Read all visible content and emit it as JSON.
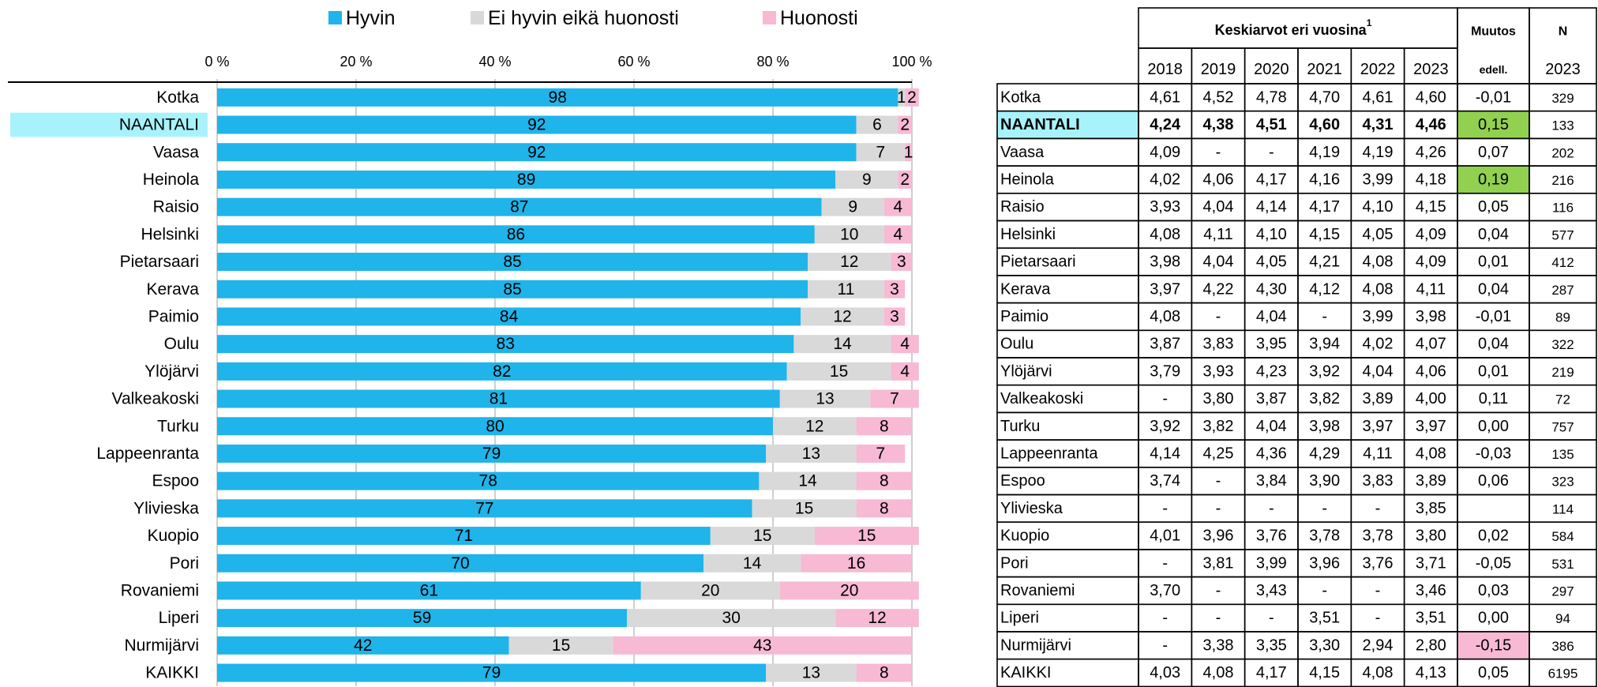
{
  "chart_data": {
    "type": "bar",
    "orientation": "horizontal",
    "stacked": true,
    "categories": [
      "Kotka",
      "NAANTALI",
      "Vaasa",
      "Heinola",
      "Raisio",
      "Helsinki",
      "Pietarsaari",
      "Kerava",
      "Paimio",
      "Oulu",
      "Ylöjärvi",
      "Valkeakoski",
      "Turku",
      "Lappeenranta",
      "Espoo",
      "Ylivieska",
      "Kuopio",
      "Pori",
      "Rovaniemi",
      "Liperi",
      "Nurmijärvi",
      "KAIKKI"
    ],
    "series": [
      {
        "name": "Hyvin",
        "color": "#1fb4ea",
        "values": [
          98,
          92,
          92,
          89,
          87,
          86,
          85,
          85,
          84,
          83,
          82,
          81,
          80,
          79,
          78,
          77,
          71,
          70,
          61,
          59,
          42,
          79
        ]
      },
      {
        "name": "Ei hyvin eikä huonosti",
        "color": "#d9d9d9",
        "values": [
          1,
          6,
          7,
          9,
          9,
          10,
          12,
          11,
          12,
          14,
          15,
          13,
          12,
          13,
          14,
          15,
          15,
          14,
          20,
          30,
          15,
          13
        ]
      },
      {
        "name": "Huonosti",
        "color": "#f7b9d4",
        "values": [
          2,
          2,
          1,
          2,
          4,
          4,
          3,
          3,
          3,
          4,
          4,
          7,
          8,
          7,
          8,
          8,
          15,
          16,
          20,
          12,
          43,
          8
        ]
      }
    ],
    "xlim": [
      0,
      100
    ],
    "xticks": [
      {
        "value": 0,
        "label": "0 %"
      },
      {
        "value": 20,
        "label": "20 %"
      },
      {
        "value": 40,
        "label": "40 %"
      },
      {
        "value": 60,
        "label": "60 %"
      },
      {
        "value": 80,
        "label": "80 %"
      },
      {
        "value": 100,
        "label": "100 %"
      }
    ],
    "grid": true,
    "highlight_category": 1,
    "highlight_color": "#a8f3fb"
  },
  "table": {
    "title": "Keskiarvot eri vuosina",
    "title_sup": "1",
    "columns": [
      "2018",
      "2019",
      "2020",
      "2021",
      "2022",
      "2023"
    ],
    "change_header": [
      "Muutos",
      "edell."
    ],
    "n_header": [
      "N",
      "2023"
    ],
    "bold_row": 1,
    "highlight_color": "#a8f3fb",
    "rows": [
      {
        "name": "Kotka",
        "values": [
          "4,61",
          "4,52",
          "4,78",
          "4,70",
          "4,61",
          "4,60"
        ],
        "change": "-0,01",
        "n": "329"
      },
      {
        "name": "NAANTALI",
        "values": [
          "4,24",
          "4,38",
          "4,51",
          "4,60",
          "4,31",
          "4,46"
        ],
        "change": "0,15",
        "n": "133",
        "change_color": "#92d050"
      },
      {
        "name": "Vaasa",
        "values": [
          "4,09",
          "-",
          "-",
          "4,19",
          "4,19",
          "4,26"
        ],
        "change": "0,07",
        "n": "202"
      },
      {
        "name": "Heinola",
        "values": [
          "4,02",
          "4,06",
          "4,17",
          "4,16",
          "3,99",
          "4,18"
        ],
        "change": "0,19",
        "n": "216",
        "change_color": "#92d050"
      },
      {
        "name": "Raisio",
        "values": [
          "3,93",
          "4,04",
          "4,14",
          "4,17",
          "4,10",
          "4,15"
        ],
        "change": "0,05",
        "n": "116"
      },
      {
        "name": "Helsinki",
        "values": [
          "4,08",
          "4,11",
          "4,10",
          "4,15",
          "4,05",
          "4,09"
        ],
        "change": "0,04",
        "n": "577"
      },
      {
        "name": "Pietarsaari",
        "values": [
          "3,98",
          "4,04",
          "4,05",
          "4,21",
          "4,08",
          "4,09"
        ],
        "change": "0,01",
        "n": "412"
      },
      {
        "name": "Kerava",
        "values": [
          "3,97",
          "4,22",
          "4,30",
          "4,12",
          "4,08",
          "4,11"
        ],
        "change": "0,04",
        "n": "287"
      },
      {
        "name": "Paimio",
        "values": [
          "4,08",
          "-",
          "4,04",
          "-",
          "3,99",
          "3,98"
        ],
        "change": "-0,01",
        "n": "89"
      },
      {
        "name": "Oulu",
        "values": [
          "3,87",
          "3,83",
          "3,95",
          "3,94",
          "4,02",
          "4,07"
        ],
        "change": "0,04",
        "n": "322"
      },
      {
        "name": "Ylöjärvi",
        "values": [
          "3,79",
          "3,93",
          "4,23",
          "3,92",
          "4,04",
          "4,06"
        ],
        "change": "0,01",
        "n": "219"
      },
      {
        "name": "Valkeakoski",
        "values": [
          "-",
          "3,80",
          "3,87",
          "3,82",
          "3,89",
          "4,00"
        ],
        "change": "0,11",
        "n": "72"
      },
      {
        "name": "Turku",
        "values": [
          "3,92",
          "3,82",
          "4,04",
          "3,98",
          "3,97",
          "3,97"
        ],
        "change": "0,00",
        "n": "757"
      },
      {
        "name": "Lappeenranta",
        "values": [
          "4,14",
          "4,25",
          "4,36",
          "4,29",
          "4,11",
          "4,08"
        ],
        "change": "-0,03",
        "n": "135"
      },
      {
        "name": "Espoo",
        "values": [
          "3,74",
          "-",
          "3,84",
          "3,90",
          "3,83",
          "3,89"
        ],
        "change": "0,06",
        "n": "323"
      },
      {
        "name": "Ylivieska",
        "values": [
          "-",
          "-",
          "-",
          "-",
          "-",
          "3,85"
        ],
        "change": null,
        "n": "114"
      },
      {
        "name": "Kuopio",
        "values": [
          "4,01",
          "3,96",
          "3,76",
          "3,78",
          "3,78",
          "3,80"
        ],
        "change": "0,02",
        "n": "584"
      },
      {
        "name": "Pori",
        "values": [
          "-",
          "3,81",
          "3,99",
          "3,96",
          "3,76",
          "3,71"
        ],
        "change": "-0,05",
        "n": "531"
      },
      {
        "name": "Rovaniemi",
        "values": [
          "3,70",
          "-",
          "3,43",
          "-",
          "-",
          "3,46"
        ],
        "change": "0,03",
        "n": "297"
      },
      {
        "name": "Liperi",
        "values": [
          "-",
          "-",
          "-",
          "3,51",
          "-",
          "3,51"
        ],
        "change": "0,00",
        "n": "94"
      },
      {
        "name": "Nurmijärvi",
        "values": [
          "-",
          "3,38",
          "3,35",
          "3,30",
          "2,94",
          "2,80"
        ],
        "change": "-0,15",
        "n": "386",
        "change_color": "#f7b9d4"
      },
      {
        "name": "KAIKKI",
        "values": [
          "4,03",
          "4,08",
          "4,17",
          "4,15",
          "4,08",
          "4,13"
        ],
        "change": "0,05",
        "n": "6195"
      }
    ]
  }
}
